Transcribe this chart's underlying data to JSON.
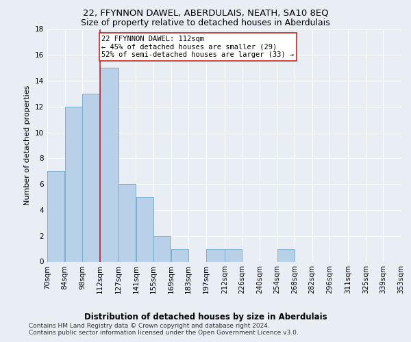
{
  "title": "22, FFYNNON DAWEL, ABERDULAIS, NEATH, SA10 8EQ",
  "subtitle": "Size of property relative to detached houses in Aberdulais",
  "xlabel": "Distribution of detached houses by size in Aberdulais",
  "ylabel": "Number of detached properties",
  "bar_values": [
    7,
    12,
    13,
    15,
    6,
    5,
    2,
    1,
    0,
    1,
    1,
    0,
    0,
    1,
    0,
    0,
    0,
    0,
    0,
    0
  ],
  "bin_edges": [
    70,
    84,
    98,
    112,
    127,
    141,
    155,
    169,
    183,
    197,
    212,
    226,
    240,
    254,
    268,
    282,
    296,
    311,
    325,
    339,
    353
  ],
  "xtick_labels": [
    "70sqm",
    "84sqm",
    "98sqm",
    "112sqm",
    "127sqm",
    "141sqm",
    "155sqm",
    "169sqm",
    "183sqm",
    "197sqm",
    "212sqm",
    "226sqm",
    "240sqm",
    "254sqm",
    "268sqm",
    "282sqm",
    "296sqm",
    "311sqm",
    "325sqm",
    "339sqm",
    "353sqm"
  ],
  "bar_color": "#b8d0e8",
  "bar_edge_color": "#7aaed0",
  "vline_x": 112,
  "vline_color": "#cc2222",
  "annotation_line1": "22 FFYNNON DAWEL: 112sqm",
  "annotation_line2": "← 45% of detached houses are smaller (29)",
  "annotation_line3": "52% of semi-detached houses are larger (33) →",
  "annotation_box_color": "#cc2222",
  "ylim": [
    0,
    18
  ],
  "yticks": [
    0,
    2,
    4,
    6,
    8,
    10,
    12,
    14,
    16,
    18
  ],
  "background_color": "#e8eef4",
  "grid_color": "#ffffff",
  "footer": "Contains HM Land Registry data © Crown copyright and database right 2024.\nContains public sector information licensed under the Open Government Licence v3.0.",
  "title_fontsize": 9.5,
  "subtitle_fontsize": 9,
  "xlabel_fontsize": 8.5,
  "ylabel_fontsize": 8,
  "tick_fontsize": 7.5,
  "annotation_fontsize": 7.5,
  "footer_fontsize": 6.5
}
